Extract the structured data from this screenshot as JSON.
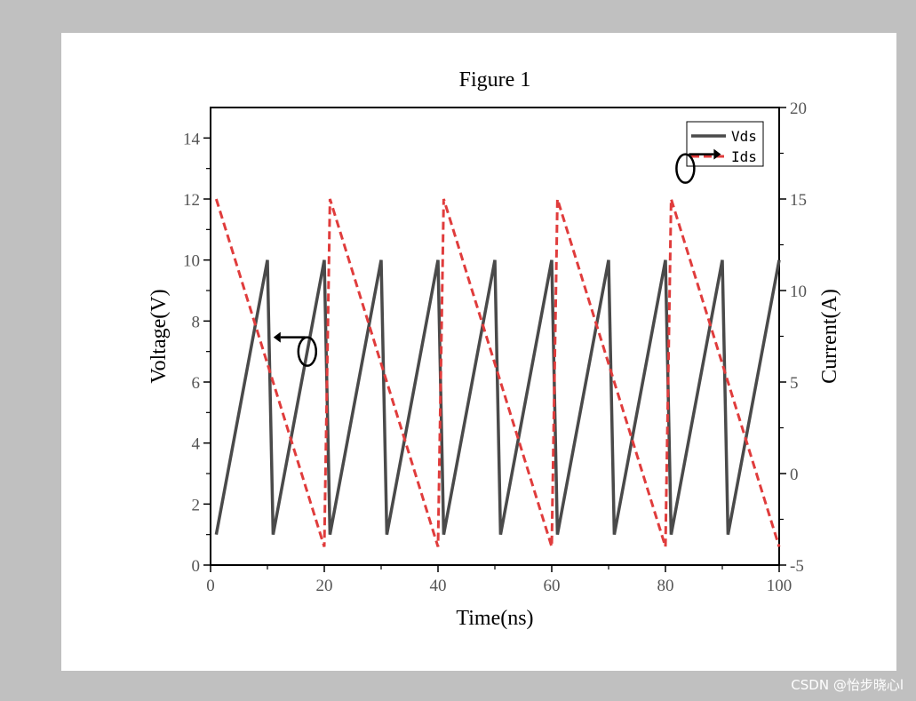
{
  "watermark": "CSDN @怡步晓心l",
  "chart_data": {
    "type": "line",
    "title": "Figure 1",
    "xlabel": "Time(ns)",
    "ylabel_left": "Voltage(V)",
    "ylabel_right": "Current(A)",
    "xlim": [
      0,
      100
    ],
    "ylim_left": [
      0,
      15
    ],
    "ylim_right": [
      -5,
      20
    ],
    "x_ticks": [
      "0",
      "20",
      "40",
      "60",
      "80",
      "100"
    ],
    "y_left_ticks": [
      "0",
      "2",
      "4",
      "6",
      "8",
      "10",
      "12",
      "14"
    ],
    "y_right_ticks": [
      "-5",
      "0",
      "5",
      "10",
      "15",
      "20"
    ],
    "legend_position": "top-right",
    "series": [
      {
        "name": "Vds",
        "axis": "left",
        "color": "#4a4a4a",
        "style": "solid",
        "x": [
          1,
          10,
          11,
          20,
          21,
          30,
          31,
          40,
          41,
          50,
          51,
          60,
          61,
          70,
          71,
          80,
          81,
          90,
          91,
          100
        ],
        "y": [
          1,
          10,
          1,
          10,
          1,
          10,
          1,
          10,
          1,
          10,
          1,
          10,
          1,
          10,
          1,
          10,
          1,
          10,
          1,
          10
        ]
      },
      {
        "name": "Ids",
        "axis": "right",
        "color": "#e03c3c",
        "style": "dashed",
        "x": [
          1,
          20,
          21,
          40,
          41,
          60,
          61,
          80,
          81,
          100
        ],
        "y": [
          15,
          -4,
          15,
          -4,
          15,
          -4,
          15,
          -4,
          15,
          -4
        ]
      }
    ],
    "annotations": [
      {
        "type": "axis-indicator",
        "series": "Vds",
        "direction": "left",
        "at": [
          17,
          7
        ]
      },
      {
        "type": "axis-indicator",
        "series": "Ids",
        "direction": "right",
        "at": [
          83.5,
          13
        ]
      }
    ]
  }
}
